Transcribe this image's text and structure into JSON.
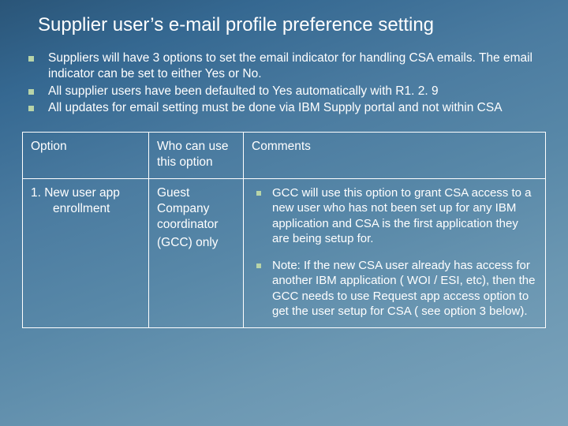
{
  "title": "Supplier user’s e-mail profile preference setting",
  "bullets": [
    "Suppliers will have 3 options to set the email indicator for handling CSA emails. The email indicator can be set to either Yes or No.",
    "All supplier users have been defaulted to Yes automatically with R1. 2. 9",
    "All updates for email setting must be done via IBM Supply portal and not within CSA"
  ],
  "table": {
    "headers": {
      "col1": "Option",
      "col2": "Who can use this option",
      "col3": "Comments"
    },
    "row1": {
      "option_l1": "1. New user app",
      "option_l2": "enrollment",
      "who_l1": "Guest",
      "who_l2": "Company",
      "who_l3": "coordinator",
      "who_l4": "(GCC) only",
      "comment1": "GCC will use this option to grant CSA access to a new user who has not been set up for any IBM application and CSA is the first application they are being setup for.",
      "comment2": "Note:  If the new CSA user already has access for another IBM application ( WOI / ESI, etc), then the GCC needs to use Request app access option to get the user setup for CSA ( see option 3 below)."
    }
  },
  "colors": {
    "bullet_square": "#b8d4a8",
    "text": "#ffffff",
    "border": "#ffffff"
  }
}
